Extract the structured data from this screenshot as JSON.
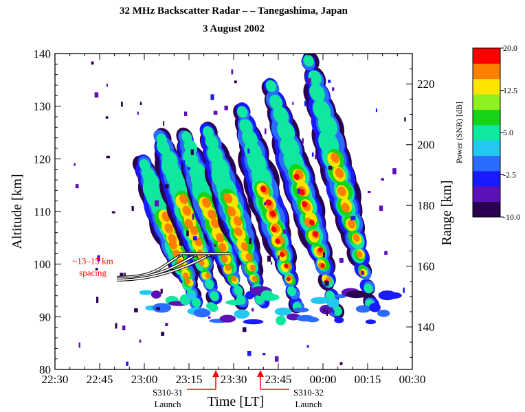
{
  "chart_data": {
    "type": "heatmap",
    "title": "32 MHz Backscatter Radar – – Tanegashima, Japan",
    "subtitle": "3 August 2002",
    "xlabel": "Time [LT]",
    "ylabel_left": "Altitude [km]",
    "ylabel_right": "Range [km]",
    "x_ticks": [
      "22:30",
      "22:45",
      "23:00",
      "23:15",
      "23:30",
      "23:45",
      "00:00",
      "00:15",
      "00:30"
    ],
    "y_left_ticks": [
      80,
      90,
      100,
      110,
      120,
      130,
      140
    ],
    "y_right_ticks": [
      140,
      160,
      180,
      200,
      220
    ],
    "x_range": [
      "22:30",
      "00:30"
    ],
    "y_left_range": [
      80,
      140
    ],
    "y_right_range": [
      126,
      230
    ],
    "colorbar": {
      "label": "Power (SNR) [dB]",
      "range": [
        -10.0,
        20.0
      ],
      "tick_labels": [
        "20.0",
        "12.5",
        "5.0",
        "-2.5",
        "-10.0"
      ],
      "colors": [
        "#2a0050",
        "#5b10b8",
        "#1a1aff",
        "#2a6cff",
        "#22c8f0",
        "#10e8a0",
        "#18d418",
        "#90f020",
        "#ffe400",
        "#ff8000",
        "#ff0000"
      ]
    },
    "features": [
      {
        "label": "~13–15 km\nspacing",
        "color": "#ff0000",
        "altitude_km": 102,
        "time": "23:20"
      }
    ],
    "markers": [
      {
        "label": "S310-31\nLaunch",
        "time": "23:24",
        "color": "#ff0000"
      },
      {
        "label": "S310-32\nLaunch",
        "time": "23:39",
        "color": "#ff0000"
      }
    ],
    "echo_bands": [
      {
        "start_time": "22:59",
        "end_time": "23:18",
        "alt_top": 120,
        "alt_bottom": 92,
        "peak_db": 16
      },
      {
        "start_time": "23:05",
        "end_time": "23:24",
        "alt_top": 125,
        "alt_bottom": 93,
        "peak_db": 15
      },
      {
        "start_time": "23:13",
        "end_time": "23:33",
        "alt_top": 125,
        "alt_bottom": 92,
        "peak_db": 15
      },
      {
        "start_time": "23:21",
        "end_time": "23:40",
        "alt_top": 126,
        "alt_bottom": 92,
        "peak_db": 15
      },
      {
        "start_time": "23:32",
        "end_time": "23:52",
        "alt_top": 130,
        "alt_bottom": 91,
        "peak_db": 20
      },
      {
        "start_time": "23:42",
        "end_time": "00:05",
        "alt_top": 135,
        "alt_bottom": 90,
        "peak_db": 20
      },
      {
        "start_time": "23:55",
        "end_time": "00:17",
        "alt_top": 140,
        "alt_bottom": 91,
        "peak_db": 16
      }
    ]
  }
}
